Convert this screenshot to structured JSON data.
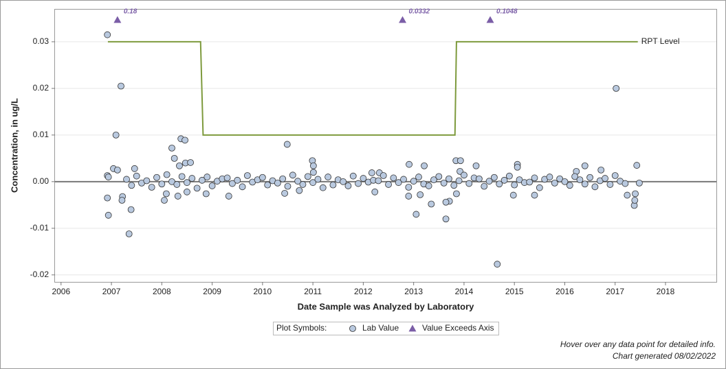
{
  "chart_data": {
    "type": "scatter",
    "x_label": "Date Sample was Analyzed by Laboratory",
    "y_label": "Concentration, in ug/L",
    "xlim": [
      2005.88,
      2019.01
    ],
    "ylim": [
      -0.0215,
      0.0369
    ],
    "xticks": [
      2006,
      2007,
      2008,
      2009,
      2010,
      2011,
      2012,
      2013,
      2014,
      2015,
      2016,
      2017,
      2018
    ],
    "yticks": [
      -0.02,
      -0.01,
      {
        "value": 0,
        "label": "0.00"
      },
      0.01,
      0.02,
      0.03
    ],
    "grid": true,
    "legend_title": "Plot Symbols:",
    "series": [
      {
        "name": "Lab Value",
        "color": "#b9c9df",
        "x": [
          2006.92,
          2007.19,
          2007.09,
          2006.92,
          2006.94,
          2006.92,
          2006.94,
          2007.04,
          2007.12,
          2007.22,
          2007.21,
          2007.35,
          2007.39,
          2007.46,
          2008.2,
          2008.25,
          2008.38,
          2008.46,
          2008.35,
          2008.47,
          2008.57,
          2008.05,
          2008.09,
          2008.32,
          2008.5,
          2008.88,
          2009.33,
          2010.49,
          2010.44,
          2010.73,
          2010.99,
          2011.01,
          2011.01,
          2012.17,
          2012.32,
          2012.23,
          2012.91,
          2012.9,
          2013.05,
          2013.21,
          2013.13,
          2013.35,
          2013.64,
          2013.71,
          2013.64,
          2013.84,
          2013.93,
          2013.92,
          2014.24,
          2013.85,
          2014.66,
          2014.98,
          2015.06,
          2015.06,
          2015.4,
          2016.23,
          2016.4,
          2016.72,
          2017.02,
          2017.24,
          2017.38,
          2017.39,
          2017.4,
          2017.43,
          2017.48,
          2007.3,
          2007.4,
          2007.5,
          2007.6,
          2007.7,
          2007.8,
          2007.9,
          2008.0,
          2008.1,
          2008.2,
          2008.3,
          2008.4,
          2008.5,
          2008.6,
          2008.7,
          2008.8,
          2008.9,
          2009.0,
          2009.1,
          2009.2,
          2009.3,
          2009.4,
          2009.5,
          2009.6,
          2009.7,
          2009.8,
          2009.9,
          2010.0,
          2010.1,
          2010.2,
          2010.3,
          2010.4,
          2010.5,
          2010.6,
          2010.7,
          2010.8,
          2010.9,
          2011.0,
          2011.1,
          2011.2,
          2011.3,
          2011.4,
          2011.5,
          2011.6,
          2011.7,
          2011.8,
          2011.9,
          2012.0,
          2012.1,
          2012.2,
          2012.3,
          2012.4,
          2012.5,
          2012.6,
          2012.7,
          2012.8,
          2012.9,
          2013.0,
          2013.1,
          2013.2,
          2013.3,
          2013.4,
          2013.5,
          2013.6,
          2013.7,
          2013.8,
          2013.9,
          2014.0,
          2014.1,
          2014.2,
          2014.3,
          2014.4,
          2014.5,
          2014.6,
          2014.7,
          2014.8,
          2014.9,
          2015.0,
          2015.1,
          2015.2,
          2015.3,
          2015.4,
          2015.5,
          2015.6,
          2015.7,
          2015.8,
          2015.9,
          2016.0,
          2016.1,
          2016.2,
          2016.3,
          2016.4,
          2016.5,
          2016.6,
          2016.7,
          2016.8,
          2016.9,
          2017.0,
          2017.1,
          2017.2
        ],
        "values": [
          0.0315,
          0.0205,
          0.01,
          0.0013,
          0.001,
          -0.0035,
          -0.0072,
          0.0028,
          0.0025,
          -0.0032,
          -0.004,
          -0.0112,
          -0.006,
          0.0028,
          0.0072,
          0.005,
          0.0092,
          0.0089,
          0.0034,
          0.004,
          0.0041,
          -0.004,
          -0.0026,
          -0.0031,
          -0.0022,
          -0.0026,
          -0.0031,
          0.008,
          -0.0025,
          -0.0019,
          0.0045,
          0.0034,
          0.002,
          0.0019,
          0.0019,
          -0.0022,
          0.0037,
          -0.0031,
          -0.007,
          0.0034,
          -0.0028,
          -0.0048,
          -0.008,
          -0.0042,
          -0.0044,
          0.0045,
          0.0045,
          0.0022,
          0.0034,
          -0.0026,
          -0.0177,
          -0.0029,
          0.0037,
          0.0031,
          -0.0029,
          0.0022,
          0.0034,
          0.0025,
          0.02,
          -0.0029,
          -0.0051,
          -0.004,
          -0.0026,
          0.0035,
          -0.0003,
          0.0005,
          -0.0008,
          0.0012,
          -0.0003,
          0.0002,
          -0.0012,
          0.0009,
          -0.0005,
          0.0015,
          0.0,
          -0.0006,
          0.0011,
          -0.0002,
          0.0007,
          -0.0014,
          0.0003,
          0.001,
          -0.0009,
          0.0001,
          0.0006,
          0.0008,
          -0.0004,
          0.0003,
          -0.0011,
          0.0013,
          -0.0001,
          0.0004,
          0.0009,
          -0.0007,
          0.0002,
          -0.0003,
          0.0006,
          -0.001,
          0.0014,
          0.0001,
          -0.0006,
          0.0011,
          -0.0002,
          0.0005,
          -0.0013,
          0.001,
          -0.0007,
          0.0004,
          0.0,
          -0.0009,
          0.0012,
          -0.0004,
          0.0007,
          -0.0001,
          0.0003,
          0.0002,
          0.0013,
          -0.0006,
          0.0008,
          -0.0002,
          0.0005,
          -0.0012,
          0.0001,
          0.001,
          -0.0005,
          -0.0009,
          0.0004,
          0.0011,
          -0.0003,
          0.0006,
          -0.0008,
          0.0002,
          0.0014,
          -0.0004,
          0.0008,
          0.0006,
          -0.001,
          0.0001,
          0.0009,
          -0.0005,
          0.0003,
          0.0012,
          -0.0007,
          0.0004,
          -0.0002,
          -0.0001,
          0.0008,
          -0.0013,
          0.0005,
          0.001,
          -0.0003,
          0.0006,
          0.0,
          -0.0008,
          0.0011,
          0.0004,
          -0.0005,
          0.0009,
          -0.0011,
          0.0002,
          0.0007,
          -0.0006,
          0.0013,
          0.0001,
          -0.0004
        ]
      }
    ],
    "reference_line": {
      "name": "RPT Level",
      "color": "#7d9a3c",
      "x": [
        2006.93,
        2008.77,
        2008.82,
        2013.82,
        2013.85,
        2017.45
      ],
      "values": [
        0.03,
        0.03,
        0.01,
        0.01,
        0.03,
        0.03
      ]
    },
    "exceedances": {
      "name": "Value Exceeds Axis",
      "color": "#7b5ea7",
      "x": [
        2007.12,
        2012.78,
        2014.52
      ],
      "values": [
        0.18,
        0.0332,
        0.1048
      ],
      "value_labels": [
        "0.18",
        "0.0332",
        "0.1048"
      ]
    },
    "footnotes": [
      "Hover over any data point for detailed info.",
      "Chart generated 08/02/2022"
    ]
  }
}
